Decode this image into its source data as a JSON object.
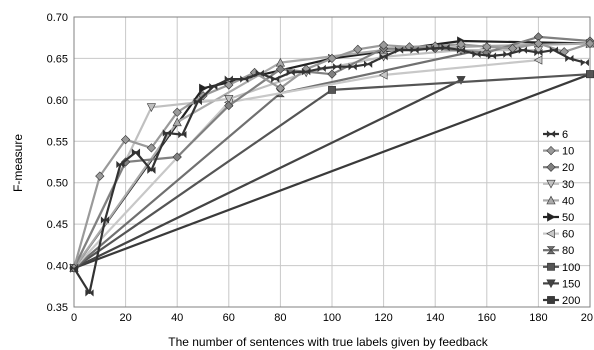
{
  "chart_data": {
    "type": "line",
    "title": "",
    "xlabel": "The number of sentences with true labels given by feedback",
    "ylabel": "F-measure",
    "xlim": [
      0,
      200
    ],
    "ylim": [
      0.35,
      0.7
    ],
    "xticks": [
      "0",
      "20",
      "40",
      "60",
      "80",
      "100",
      "120",
      "140",
      "160",
      "180",
      "20"
    ],
    "yticks": [
      "0.35",
      "0.40",
      "0.45",
      "0.50",
      "0.55",
      "0.60",
      "0.65",
      "0.70"
    ],
    "grid": "both",
    "legend_position": "right",
    "series": [
      {
        "name": "6",
        "color": "#333333",
        "marker": "plus",
        "x": [
          0,
          6,
          12,
          18,
          24,
          30,
          36,
          42,
          48,
          54,
          60,
          66,
          72,
          78,
          84,
          90,
          96,
          102,
          108,
          114,
          120,
          126,
          132,
          138,
          144,
          150,
          156,
          162,
          168,
          174,
          180,
          186,
          192,
          198
        ],
        "y": [
          0.397,
          0.367,
          0.455,
          0.522,
          0.537,
          0.515,
          0.56,
          0.558,
          0.598,
          0.616,
          0.625,
          0.625,
          0.632,
          0.625,
          0.633,
          0.634,
          0.638,
          0.64,
          0.64,
          0.643,
          0.652,
          0.66,
          0.66,
          0.662,
          0.663,
          0.66,
          0.655,
          0.653,
          0.655,
          0.66,
          0.657,
          0.66,
          0.65,
          0.645
        ]
      },
      {
        "name": "10",
        "color": "#9a9a9a",
        "marker": "diamond",
        "x": [
          0,
          10,
          20,
          30,
          40,
          50,
          60,
          70,
          80,
          90,
          100,
          110,
          120,
          130,
          140,
          150,
          160,
          170,
          180,
          190,
          200
        ],
        "y": [
          0.397,
          0.508,
          0.552,
          0.542,
          0.585,
          0.605,
          0.618,
          0.633,
          0.614,
          0.637,
          0.65,
          0.661,
          0.666,
          0.664,
          0.665,
          0.667,
          0.664,
          0.662,
          0.668,
          0.658,
          0.668
        ]
      },
      {
        "name": "20",
        "color": "#808080",
        "marker": "diamond",
        "x": [
          0,
          20,
          40,
          60,
          80,
          100,
          120,
          140,
          160,
          180,
          200
        ],
        "y": [
          0.397,
          0.525,
          0.531,
          0.593,
          0.637,
          0.631,
          0.662,
          0.662,
          0.657,
          0.676,
          0.671
        ]
      },
      {
        "name": "30",
        "color": "#c0c0c0",
        "marker": "triangle-down",
        "x": [
          0,
          30,
          60,
          90,
          120,
          150,
          180
        ],
        "y": [
          0.397,
          0.591,
          0.601,
          0.633,
          0.652,
          0.66,
          0.66
        ]
      },
      {
        "name": "40",
        "color": "#aaaaaa",
        "marker": "triangle-up",
        "x": [
          0,
          40,
          80,
          120,
          160,
          200
        ],
        "y": [
          0.397,
          0.573,
          0.645,
          0.66,
          0.665,
          0.668
        ]
      },
      {
        "name": "50",
        "color": "#222222",
        "marker": "triangle-right",
        "x": [
          0,
          50,
          100,
          150,
          200
        ],
        "y": [
          0.397,
          0.614,
          0.65,
          0.671,
          0.668
        ]
      },
      {
        "name": "60",
        "color": "#c8c8c8",
        "marker": "triangle-left",
        "x": [
          0,
          60,
          120,
          180
        ],
        "y": [
          0.397,
          0.597,
          0.63,
          0.648
        ]
      },
      {
        "name": "80",
        "color": "#707070",
        "marker": "hourglass",
        "x": [
          0,
          80,
          160
        ],
        "y": [
          0.397,
          0.608,
          0.662
        ]
      },
      {
        "name": "100",
        "color": "#555555",
        "marker": "square",
        "x": [
          0,
          100,
          200
        ],
        "y": [
          0.397,
          0.612,
          0.631
        ]
      },
      {
        "name": "150",
        "color": "#444444",
        "marker": "triangle-down",
        "x": [
          0,
          150
        ],
        "y": [
          0.397,
          0.624
        ]
      },
      {
        "name": "200",
        "color": "#3a3a3a",
        "marker": "square",
        "x": [
          0,
          200
        ],
        "y": [
          0.397,
          0.631
        ]
      }
    ]
  }
}
